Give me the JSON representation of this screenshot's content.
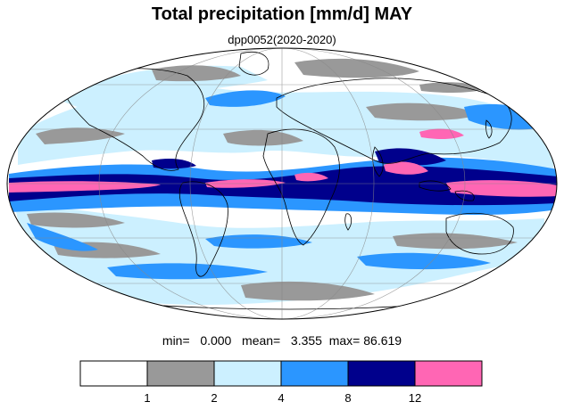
{
  "title": "Total precipitation [mm/d] MAY",
  "subtitle": "dpp0052(2020-2020)",
  "stats": {
    "min_label": "min=",
    "min_value": "0.000",
    "mean_label": "mean=",
    "mean_value": "3.355",
    "max_label": "max=",
    "max_value": "86.619"
  },
  "legend": {
    "colors": [
      "#ffffff",
      "#999999",
      "#ccf0ff",
      "#2b96ff",
      "#00008c",
      "#ff66b4"
    ],
    "ticks": [
      "1",
      "2",
      "4",
      "8",
      "12"
    ]
  },
  "map": {
    "projection": "mollweide",
    "land_color": "#ffffff",
    "coastline_color": "#000000",
    "grid": true
  }
}
